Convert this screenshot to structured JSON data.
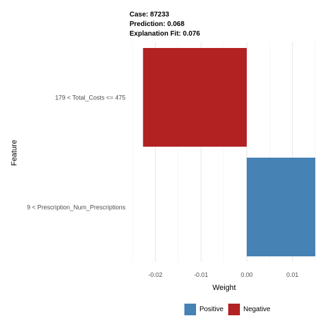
{
  "header": {
    "case": "Case: 87233",
    "prediction": "Prediction: 0.068",
    "fit": "Explanation Fit: 0.076"
  },
  "chart_data": {
    "type": "bar",
    "orientation": "horizontal",
    "xlabel": "Weight",
    "ylabel": "Feature",
    "xlim": [
      -0.0255,
      0.0165
    ],
    "xticks": [
      -0.02,
      -0.01,
      0.0,
      0.01
    ],
    "xtick_labels": [
      "-0.02",
      "-0.01",
      "0.00",
      "0.01"
    ],
    "grid": true,
    "legend_position": "bottom",
    "categories": [
      "179 < Total_Costs <= 475",
      "9 < Prescription_Num_Prescriptions"
    ],
    "values": [
      -0.0227,
      0.015
    ],
    "signs": [
      "Negative",
      "Positive"
    ],
    "legend": [
      {
        "label": "Positive",
        "color": "#4682b4"
      },
      {
        "label": "Negative",
        "color": "#b22222"
      }
    ]
  }
}
